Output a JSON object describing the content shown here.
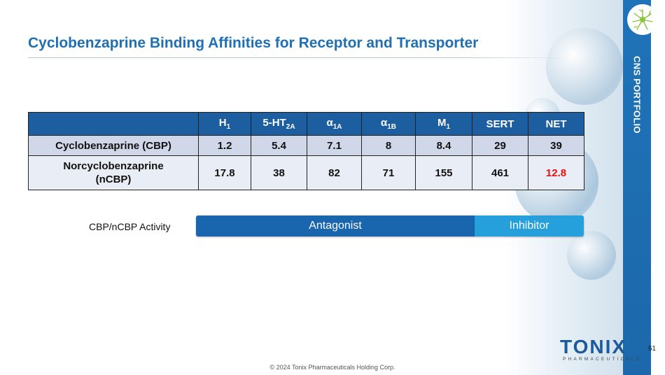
{
  "title": "Cyclobenzaprine Binding Affinities for Receptor and Transporter",
  "side_label": "CNS PORTFOLIO",
  "table": {
    "headers": [
      {
        "main": "H",
        "sub": "1"
      },
      {
        "main": "5-HT",
        "sub": "2A"
      },
      {
        "main": "α",
        "sub": "1A"
      },
      {
        "main": "α",
        "sub": "1B"
      },
      {
        "main": "M",
        "sub": "1"
      },
      {
        "main": "SERT",
        "sub": ""
      },
      {
        "main": "NET",
        "sub": ""
      }
    ],
    "rows": [
      {
        "label": "Cyclobenzaprine (CBP)",
        "values": [
          "1.2",
          "5.4",
          "7.1",
          "8",
          "8.4",
          "29",
          "39"
        ]
      },
      {
        "label_line1": "Norcyclobenzaprine",
        "label_line2": "(nCBP)",
        "values": [
          "17.8",
          "38",
          "82",
          "71",
          "155",
          "461",
          "12.8"
        ],
        "highlight_color": "#e3120b"
      }
    ]
  },
  "activity": {
    "label": "CBP/nCBP Activity",
    "antagonist": "Antagonist",
    "inhibitor": "Inhibitor"
  },
  "logo": {
    "word": "TONIX",
    "sub": "PHARMACEUTICALS",
    "icon": "neuron-icon"
  },
  "page_number": "61",
  "footer": "© 2024 Tonix Pharmaceuticals Holding Corp.",
  "colors": {
    "title": "#1f6fb5",
    "header_bg": "#1c5ea0",
    "antagonist": "#1a66ae",
    "inhibitor": "#25a0dc"
  }
}
